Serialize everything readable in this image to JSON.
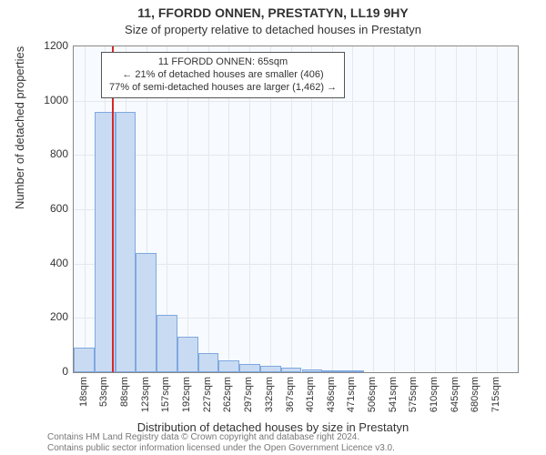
{
  "title_line1": "11, FFORDD ONNEN, PRESTATYN, LL19 9HY",
  "title_line2": "Size of property relative to detached houses in Prestatyn",
  "xaxis_label": "Distribution of detached houses by size in Prestatyn",
  "yaxis_label": "Number of detached properties",
  "footer_line1": "Contains HM Land Registry data © Crown copyright and database right 2024.",
  "footer_line2": "Contains public sector information licensed under the Open Government Licence v3.0.",
  "annotation": {
    "line1": "11 FFORDD ONNEN: 65sqm",
    "line2": "← 21% of detached houses are smaller (406)",
    "line3": "77% of semi-detached houses are larger (1,462) →"
  },
  "chart": {
    "type": "histogram",
    "background_color": "#f7fbff",
    "bar_fill": "#c9dbf2",
    "bar_border": "#7fa8df",
    "grid_color": "#e4e8ef",
    "marker_color": "#d62728",
    "marker_x_value": 65,
    "xlim": [
      0,
      750
    ],
    "ylim": [
      0,
      1200
    ],
    "ytick_step": 200,
    "xticks": [
      18,
      53,
      88,
      123,
      157,
      192,
      227,
      262,
      297,
      332,
      367,
      401,
      436,
      471,
      506,
      541,
      575,
      610,
      645,
      680,
      715
    ],
    "xtick_unit": "sqm",
    "bars": [
      {
        "x0": 0,
        "x1": 35,
        "y": 90
      },
      {
        "x0": 35,
        "x1": 70,
        "y": 960
      },
      {
        "x0": 70,
        "x1": 105,
        "y": 960
      },
      {
        "x0": 105,
        "x1": 140,
        "y": 440
      },
      {
        "x0": 140,
        "x1": 175,
        "y": 210
      },
      {
        "x0": 175,
        "x1": 210,
        "y": 130
      },
      {
        "x0": 210,
        "x1": 245,
        "y": 70
      },
      {
        "x0": 245,
        "x1": 280,
        "y": 45
      },
      {
        "x0": 280,
        "x1": 315,
        "y": 30
      },
      {
        "x0": 315,
        "x1": 350,
        "y": 25
      },
      {
        "x0": 350,
        "x1": 385,
        "y": 18
      },
      {
        "x0": 385,
        "x1": 420,
        "y": 10
      },
      {
        "x0": 420,
        "x1": 455,
        "y": 5
      },
      {
        "x0": 455,
        "x1": 490,
        "y": 5
      }
    ]
  }
}
